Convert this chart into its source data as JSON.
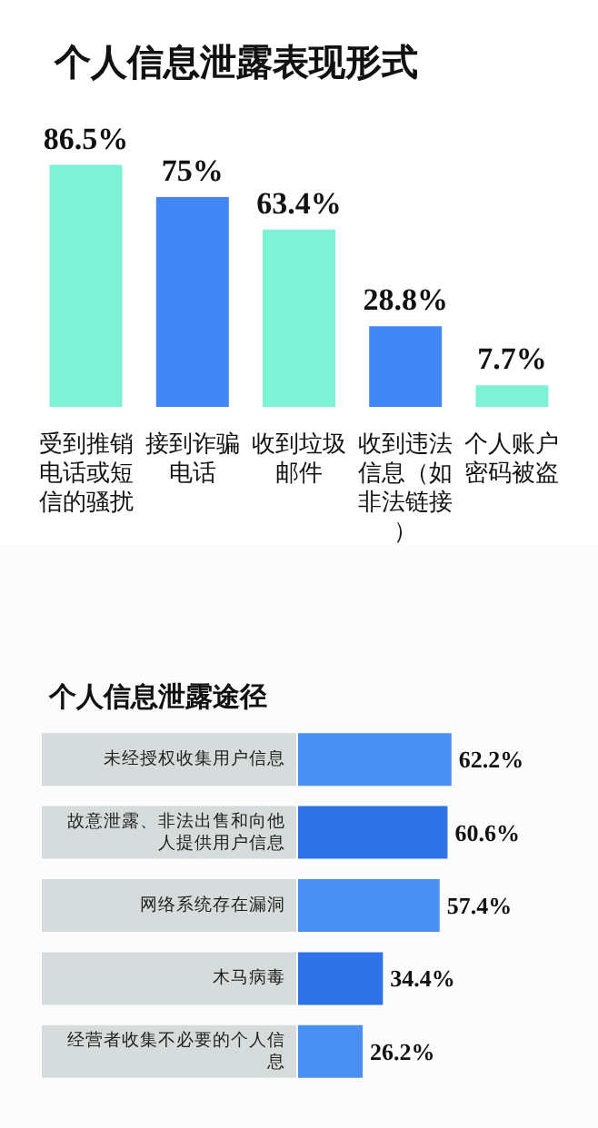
{
  "chart_data": [
    {
      "type": "bar",
      "title": "个人信息泄露表现形式",
      "categories": [
        "受到推销电话或短信的骚扰",
        "接到诈骗电话",
        "收到垃圾邮件",
        "收到违法信息（如非法链接）",
        "个人账户密码被盗"
      ],
      "values": [
        86.5,
        75,
        63.4,
        28.8,
        7.7
      ],
      "colors": [
        "#7df2d4",
        "#4287f5",
        "#7df2d4",
        "#4287f5",
        "#7df2d4"
      ],
      "value_labels": [
        "86.5%",
        "75%",
        "63.4%",
        "28.8%",
        "7.7%"
      ]
    },
    {
      "type": "bar",
      "orientation": "horizontal",
      "title": "个人信息泄露途径",
      "categories": [
        "未经授权收集用户信息",
        "故意泄露、非法出售和向他人提供用户信息",
        "网络系统存在漏洞",
        "木马病毒",
        "经营者收集不必要的个人信息"
      ],
      "values": [
        62.2,
        60.6,
        57.4,
        34.4,
        26.2
      ],
      "colors": [
        "#4a8ff2",
        "#2f72e8",
        "#4a8ff2",
        "#2f72e8",
        "#4a8ff2"
      ],
      "value_labels": [
        "62.2%",
        "60.6%",
        "57.4%",
        "34.4%",
        "26.2%"
      ]
    }
  ]
}
